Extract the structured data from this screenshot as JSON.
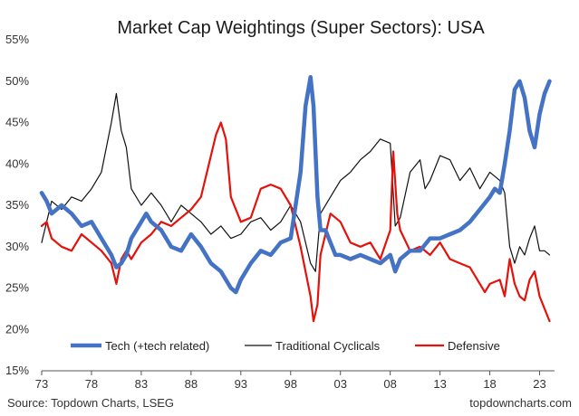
{
  "chart_data": {
    "type": "line",
    "title": "Market Cap Weightings (Super Sectors): USA",
    "xlabel": "",
    "ylabel": "",
    "x_ticks": [
      "73",
      "78",
      "83",
      "88",
      "93",
      "98",
      "03",
      "08",
      "13",
      "18",
      "23"
    ],
    "y_ticks": [
      "15%",
      "20%",
      "25%",
      "30%",
      "35%",
      "40%",
      "45%",
      "50%",
      "55%"
    ],
    "xlim": [
      1973,
      2024.5
    ],
    "ylim": [
      15,
      55
    ],
    "legend_position": "bottom",
    "series": [
      {
        "name": "Tech (+tech related)",
        "color": "#4472C4",
        "width": 4.5,
        "x": [
          1973,
          1973.5,
          1974,
          1975,
          1976,
          1977,
          1978,
          1979,
          1980,
          1980.5,
          1981,
          1981.5,
          1982,
          1983,
          1983.5,
          1984,
          1985,
          1986,
          1987,
          1988,
          1989,
          1990,
          1991,
          1992,
          1992.5,
          1993,
          1994,
          1995,
          1996,
          1997,
          1998,
          1999,
          1999.5,
          2000,
          2000.3,
          2000.7,
          2001,
          2001.5,
          2002,
          2002.5,
          2003,
          2004,
          2005,
          2006,
          2007,
          2008,
          2008.5,
          2009,
          2010,
          2011,
          2012,
          2013,
          2014,
          2015,
          2016,
          2017,
          2018,
          2018.5,
          2019,
          2019.5,
          2020,
          2020.5,
          2021,
          2021.5,
          2022,
          2022.5,
          2023,
          2023.5,
          2024
        ],
        "values": [
          36.5,
          35.5,
          34,
          35,
          34,
          32.5,
          33,
          31,
          29,
          27.5,
          28,
          29,
          31,
          33,
          34,
          33,
          32,
          30,
          29.5,
          31.5,
          30,
          28,
          27,
          25,
          24.5,
          26,
          28,
          29.5,
          29,
          30.5,
          31,
          39,
          47,
          50.5,
          47,
          36,
          32,
          32,
          30.5,
          29,
          29,
          28.5,
          29,
          28.5,
          28,
          29,
          27,
          28.5,
          29.5,
          29.5,
          31,
          31,
          31.5,
          32,
          33,
          34.5,
          36,
          37,
          36.5,
          40,
          44,
          49,
          50,
          48,
          44,
          42,
          46,
          48.5,
          50
        ]
      },
      {
        "name": "Traditional Cyclicals",
        "color": "#111111",
        "width": 1.2,
        "x": [
          1973,
          1973.5,
          1974,
          1975,
          1976,
          1977,
          1978,
          1979,
          1980,
          1980.5,
          1981,
          1981.5,
          1982,
          1983,
          1984,
          1985,
          1986,
          1987,
          1988,
          1989,
          1990,
          1991,
          1992,
          1993,
          1994,
          1995,
          1996,
          1997,
          1998,
          1999,
          2000,
          2000.5,
          2001,
          2002,
          2003,
          2004,
          2005,
          2006,
          2007,
          2008,
          2008.5,
          2009,
          2010,
          2011,
          2011.5,
          2012,
          2013,
          2014,
          2015,
          2016,
          2017,
          2018,
          2019,
          2019.5,
          2020,
          2020.5,
          2021,
          2021.5,
          2022,
          2022.5,
          2023,
          2023.5,
          2024
        ],
        "values": [
          30.5,
          33,
          35.5,
          34.5,
          36,
          35.5,
          37,
          39,
          45,
          48.5,
          44,
          42,
          37,
          35,
          36.5,
          35,
          33,
          35,
          34,
          33,
          31.5,
          32.5,
          31,
          31.5,
          33,
          33.5,
          32,
          33,
          35,
          33,
          28,
          27,
          34,
          36,
          38,
          39,
          40.5,
          41.5,
          43,
          42.5,
          32.5,
          33.5,
          39,
          40.5,
          37,
          38,
          41,
          40.5,
          38,
          39.5,
          37,
          39,
          38,
          36.5,
          30,
          28,
          30,
          29,
          31,
          32.5,
          29.5,
          29.5,
          29
        ]
      },
      {
        "name": "Defensive",
        "color": "#E3120B",
        "width": 2.2,
        "x": [
          1973,
          1973.5,
          1974,
          1975,
          1976,
          1977,
          1978,
          1979,
          1980,
          1980.5,
          1981,
          1981.5,
          1982,
          1983,
          1984,
          1985,
          1986,
          1987,
          1988,
          1989,
          1990,
          1990.5,
          1991,
          1991.5,
          1992,
          1993,
          1994,
          1995,
          1996,
          1997,
          1998,
          1999,
          2000,
          2000.3,
          2000.7,
          2001,
          2002,
          2003,
          2004,
          2005,
          2006,
          2007,
          2008,
          2008.3,
          2008.7,
          2009,
          2010,
          2011,
          2012,
          2013,
          2014,
          2015,
          2016,
          2017,
          2017.5,
          2018,
          2019,
          2019.5,
          2020,
          2020.5,
          2021,
          2021.5,
          2022,
          2022.5,
          2023,
          2023.5,
          2024
        ],
        "values": [
          32.5,
          33,
          31,
          30,
          29.5,
          31.5,
          30.5,
          29.5,
          28,
          25.5,
          28.5,
          29.5,
          28.5,
          30.5,
          31.5,
          33,
          32.5,
          33.5,
          34.5,
          36,
          41,
          43.5,
          45,
          43,
          36,
          33,
          33.5,
          37,
          37.5,
          37,
          35,
          30,
          24,
          21,
          23,
          29,
          34,
          33,
          30.5,
          30,
          30.5,
          28.5,
          32,
          41.5,
          34,
          32,
          29.5,
          30,
          29,
          30.5,
          28.5,
          28,
          27.5,
          25.5,
          24.5,
          25.5,
          26,
          24,
          28.5,
          25.5,
          24,
          23.5,
          26,
          27,
          24,
          22.5,
          21
        ]
      }
    ]
  },
  "footer": {
    "source": "Source: Topdown Charts, LSEG",
    "site": "topdowncharts.com"
  }
}
